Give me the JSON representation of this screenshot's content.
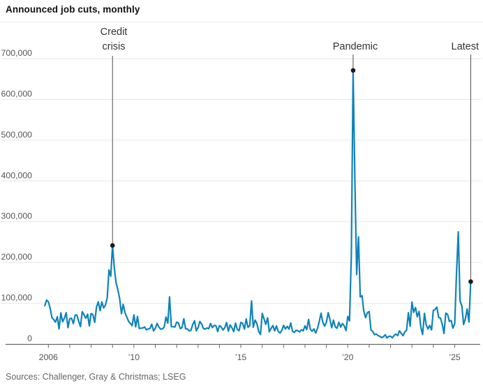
{
  "header": {
    "title": "Announced job cuts, monthly"
  },
  "footer": {
    "source": "Sources: Challenger, Gray & Christmas; LSEG"
  },
  "colors": {
    "line": "#0f83ba",
    "annotation_line": "#4d4d4d",
    "dot": "#1a1a1a",
    "grid": "#e6e6e6",
    "axis": "#666666",
    "tick": "#666666",
    "title_text": "#111111",
    "annotation_text": "#333333",
    "source_text": "#666666"
  },
  "chart_data": {
    "type": "line",
    "title": "Announced job cuts, monthly",
    "x_start": {
      "year": 2005,
      "month": 11
    },
    "x_unit": "month",
    "ylim": [
      0,
      700000
    ],
    "grid": true,
    "legend": false,
    "y_ticks": [
      {
        "value": 0,
        "label": "0"
      },
      {
        "value": 100000,
        "label": "100,000"
      },
      {
        "value": 200000,
        "label": "200,000"
      },
      {
        "value": 300000,
        "label": "300,000"
      },
      {
        "value": 400000,
        "label": "400,000"
      },
      {
        "value": 500000,
        "label": "500,000"
      },
      {
        "value": 600000,
        "label": "600,000"
      },
      {
        "value": 700000,
        "label": "700,000"
      }
    ],
    "x_ticks": [
      {
        "year": 2006,
        "label": "2006"
      },
      {
        "year": 2010,
        "label": "’10"
      },
      {
        "year": 2015,
        "label": "’15"
      },
      {
        "year": 2020,
        "label": "’20"
      },
      {
        "year": 2025,
        "label": "’25"
      }
    ],
    "x_tick_year_range": [
      2006,
      2025
    ],
    "series": [
      {
        "name": "Announced job cuts",
        "values": [
          94004,
          107822,
          103466,
          87437,
          64975,
          59688,
          53716,
          67176,
          37178,
          76278,
          54654,
          63486,
          76773,
          40346,
          62115,
          63247,
          50018,
          70672,
          71115,
          55726,
          42897,
          79459,
          71739,
          63114,
          73140,
          44416,
          74986,
          72091,
          53100,
          90015,
          103522,
          81755,
          103312,
          88736,
          95094,
          112884,
          181671,
          166348,
          241749,
          186350,
          150411,
          132590,
          111770,
          74393,
          97373,
          76456,
          66404,
          55679,
          50349,
          45094,
          71482,
          42090,
          67611,
          38326,
          38810,
          39358,
          41676,
          34768,
          37151,
          37986,
          48711,
          32004,
          38519,
          50702,
          41528,
          36490,
          37135,
          41432,
          66414,
          51114,
          115730,
          42759,
          42474,
          41785,
          53486,
          51728,
          37880,
          40559,
          61887,
          37551,
          36855,
          32239,
          33816,
          47724,
          57081,
          32556,
          40430,
          55356,
          49255,
          38121,
          36398,
          39372,
          37701,
          50462,
          40289,
          45730,
          45314,
          30623,
          45107,
          41835,
          34399,
          40298,
          52961,
          31434,
          46887,
          40010,
          30477,
          51183,
          35940,
          32640,
          53041,
          50579,
          36594,
          61582,
          41034,
          44842,
          105696,
          41186,
          58877,
          50504,
          30953,
          23622,
          75114,
          61599,
          48207,
          64141,
          30157,
          38536,
          45346,
          32188,
          44324,
          30740,
          26936,
          33627,
          45934,
          36957,
          43310,
          36602,
          51692,
          31105,
          28307,
          33825,
          32346,
          29831,
          35038,
          32423,
          44653,
          35369,
          60357,
          36081,
          31517,
          37202,
          27122,
          38472,
          55285,
          75644,
          53073,
          43884,
          52988,
          76835,
          60587,
          40023,
          58577,
          41977,
          38845,
          53480,
          41557,
          50275,
          44569,
          32843,
          67735,
          56660,
          222288,
          671129,
          397016,
          170219,
          262649,
          115762,
          118804,
          80666,
          64797,
          77030,
          79552,
          34531,
          30603,
          22913,
          24586,
          20476,
          18942,
          15723,
          17895,
          22822,
          14875,
          19052,
          19064,
          15245,
          21387,
          24286,
          20712,
          32517,
          25810,
          20485,
          29989,
          33843,
          76835,
          43651,
          102943,
          77770,
          89703,
          66995,
          80089,
          40709,
          23697,
          75151,
          47457,
          36836,
          45510,
          34817,
          82307,
          84638,
          90309,
          64789,
          63816,
          48786,
          25885,
          75891,
          72821,
          55597,
          57727,
          38792,
          49795,
          172017,
          275240,
          105441,
          93816,
          47999,
          62075,
          85979,
          54064,
          153074
        ]
      }
    ],
    "annotations": [
      {
        "label": "Credit crisis",
        "month_index": 38,
        "value": 241749,
        "line_top": 80
      },
      {
        "label": "Pandemic",
        "month_index": 173,
        "value": 671129,
        "line_top": 78
      },
      {
        "label": "Latest",
        "month_index": 239,
        "value": 153074,
        "line_top": 78
      }
    ]
  }
}
